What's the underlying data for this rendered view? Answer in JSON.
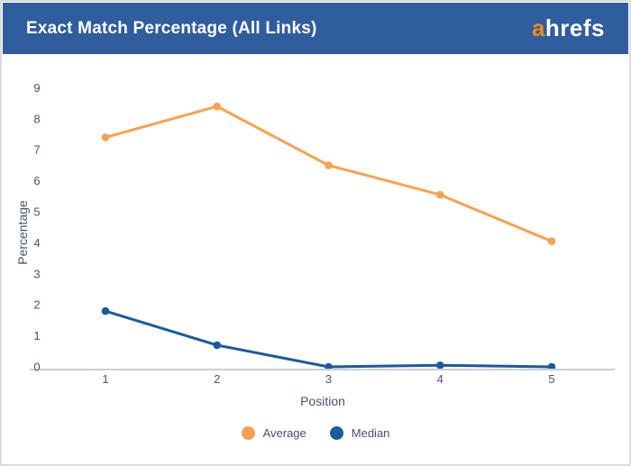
{
  "header": {
    "title": "Exact Match Percentage (All Links)",
    "logo_accent": "a",
    "logo_rest": "hrefs",
    "bg_color": "#2f5d9e",
    "logo_accent_color": "#f18a21"
  },
  "chart_data": {
    "type": "line",
    "title": "Exact Match Percentage (All Links)",
    "x": [
      1,
      2,
      3,
      4,
      5
    ],
    "xlabel": "Position",
    "ylabel": "Percentage",
    "ylim": [
      0,
      9
    ],
    "y_ticks": [
      0,
      1,
      2,
      3,
      4,
      5,
      6,
      7,
      8,
      9
    ],
    "grid": false,
    "legend_position": "bottom",
    "series": [
      {
        "name": "Average",
        "color": "#f9a14e",
        "values": [
          7.4,
          8.4,
          6.5,
          5.55,
          4.05
        ]
      },
      {
        "name": "Median",
        "color": "#1b5a9d",
        "values": [
          1.8,
          0.7,
          0,
          0.05,
          0
        ]
      }
    ],
    "label_color": "#44546a",
    "axis_line_color": "#cfcfcf"
  }
}
